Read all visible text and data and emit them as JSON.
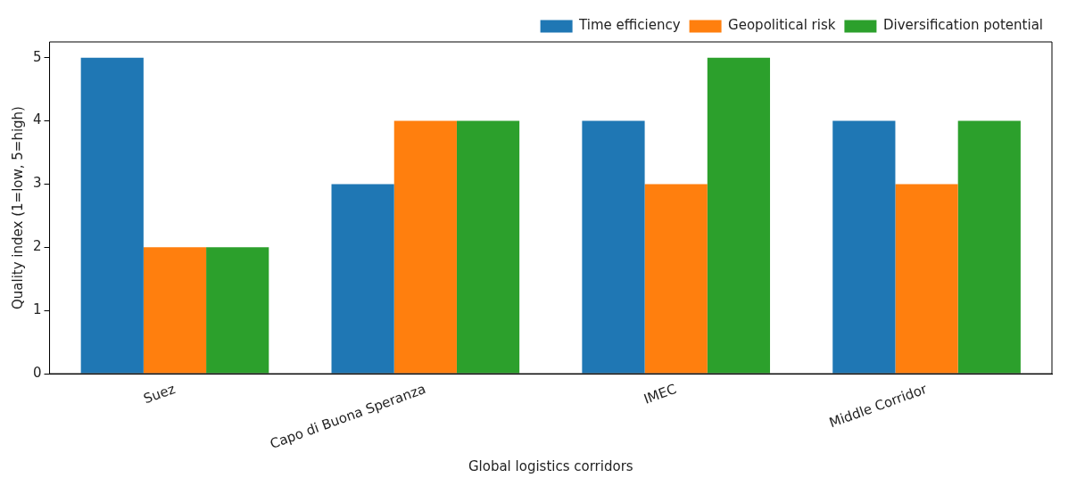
{
  "chart_data": {
    "type": "bar",
    "xlabel": "Global logistics corridors",
    "ylabel": "Quality index (1=low, 5=high)",
    "categories": [
      "Suez",
      "Capo di Buona Speranza",
      "IMEC",
      "Middle Corridor"
    ],
    "series": [
      {
        "name": "Time efficiency",
        "color": "#1f77b4",
        "values": [
          5,
          3,
          4,
          4
        ]
      },
      {
        "name": "Geopolitical risk",
        "color": "#ff7f0e",
        "values": [
          2,
          4,
          3,
          3
        ]
      },
      {
        "name": "Diversification potential",
        "color": "#2ca02c",
        "values": [
          2,
          4,
          5,
          4
        ]
      }
    ],
    "ylim": [
      0,
      5.25
    ],
    "yticks": [
      0,
      1,
      2,
      3,
      4,
      5
    ],
    "grid": false,
    "legend": "top right"
  }
}
